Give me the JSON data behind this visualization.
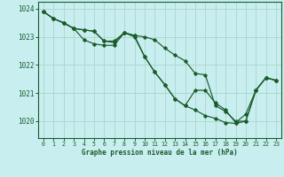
{
  "title": "Graphe pression niveau de la mer (hPa)",
  "background_color": "#c8eef0",
  "grid_color": "#b0d8d0",
  "line_color": "#1a5c2a",
  "marker_color": "#1a5c2a",
  "xlim": [
    -0.5,
    23.5
  ],
  "ylim": [
    1019.4,
    1024.25
  ],
  "yticks": [
    1020,
    1021,
    1022,
    1023,
    1024
  ],
  "xticks": [
    0,
    1,
    2,
    3,
    4,
    5,
    6,
    7,
    8,
    9,
    10,
    11,
    12,
    13,
    14,
    15,
    16,
    17,
    18,
    19,
    20,
    21,
    22,
    23
  ],
  "series": [
    [
      1023.9,
      1023.65,
      1023.5,
      1023.3,
      1023.25,
      1023.2,
      1022.85,
      1022.85,
      1023.15,
      1023.05,
      1023.0,
      1022.9,
      1022.6,
      1022.35,
      1022.15,
      1021.7,
      1021.65,
      1020.55,
      1020.35,
      1020.0,
      1020.0,
      1021.1,
      1021.55,
      1021.45
    ],
    [
      1023.9,
      1023.65,
      1023.5,
      1023.3,
      1023.25,
      1023.2,
      1022.85,
      1022.8,
      1023.15,
      1023.05,
      1022.3,
      1021.75,
      1021.3,
      1020.8,
      1020.55,
      1020.4,
      1020.2,
      1020.1,
      1019.95,
      1019.92,
      1020.0,
      1021.1,
      1021.55,
      1021.45
    ],
    [
      1023.9,
      1023.65,
      1023.5,
      1023.3,
      1022.9,
      1022.75,
      1022.7,
      1022.7,
      1023.15,
      1023.0,
      1022.3,
      1021.75,
      1021.3,
      1020.8,
      1020.55,
      1021.1,
      1021.1,
      1020.65,
      1020.4,
      1019.95,
      1020.25,
      1021.1,
      1021.55,
      1021.45
    ]
  ]
}
